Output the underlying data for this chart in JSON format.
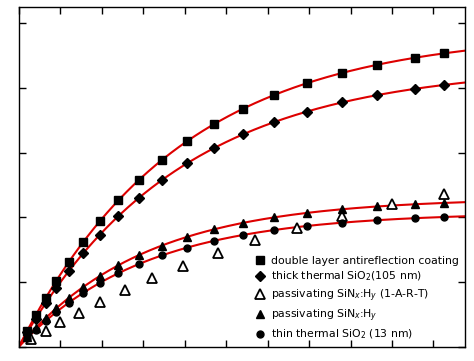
{
  "background_color": "#ffffff",
  "line_color": "#dd0000",
  "marker_color": "black",
  "figsize": [
    4.74,
    3.61
  ],
  "dpi": 100,
  "curves": {
    "curve1": {
      "ymax": 0.975,
      "k": 1.3
    },
    "curve2": {
      "ymax": 0.87,
      "k": 1.3
    },
    "curve4": {
      "ymax": 0.46,
      "k": 1.65
    },
    "curve5": {
      "ymax": 0.415,
      "k": 1.65
    }
  },
  "x_markers": [
    0.04,
    0.08,
    0.13,
    0.18,
    0.24,
    0.31,
    0.39,
    0.48,
    0.58,
    0.69,
    0.81,
    0.94,
    1.08,
    1.23,
    1.39,
    1.56,
    1.73,
    1.91,
    2.05
  ],
  "x3_pts": [
    0.06,
    0.13,
    0.2,
    0.29,
    0.39,
    0.51,
    0.64,
    0.79,
    0.96,
    1.14,
    1.34,
    1.56,
    1.8,
    2.05
  ],
  "y3_params": {
    "ymax": 0.68,
    "k": 0.58
  },
  "xlim": [
    0,
    2.15
  ],
  "ylim": [
    0,
    1.05
  ],
  "xticks": [
    0.0,
    0.2,
    0.4,
    0.6,
    0.8,
    1.0,
    1.2,
    1.4,
    1.6,
    1.8,
    2.0
  ],
  "yticks": [
    0.0,
    0.2,
    0.4,
    0.6,
    0.8,
    1.0
  ],
  "legend": {
    "labels": [
      "double layer antireflection coating",
      "thick thermal SiO$_2$(105 nm)",
      "passivating SiN$_x$:H$_y$ (1-A-R-T)",
      "passivating SiN$_x$:H$_y$",
      "thin thermal SiO$_2$ (13 nm)"
    ],
    "fontsize": 7.8,
    "loc": "lower right"
  }
}
